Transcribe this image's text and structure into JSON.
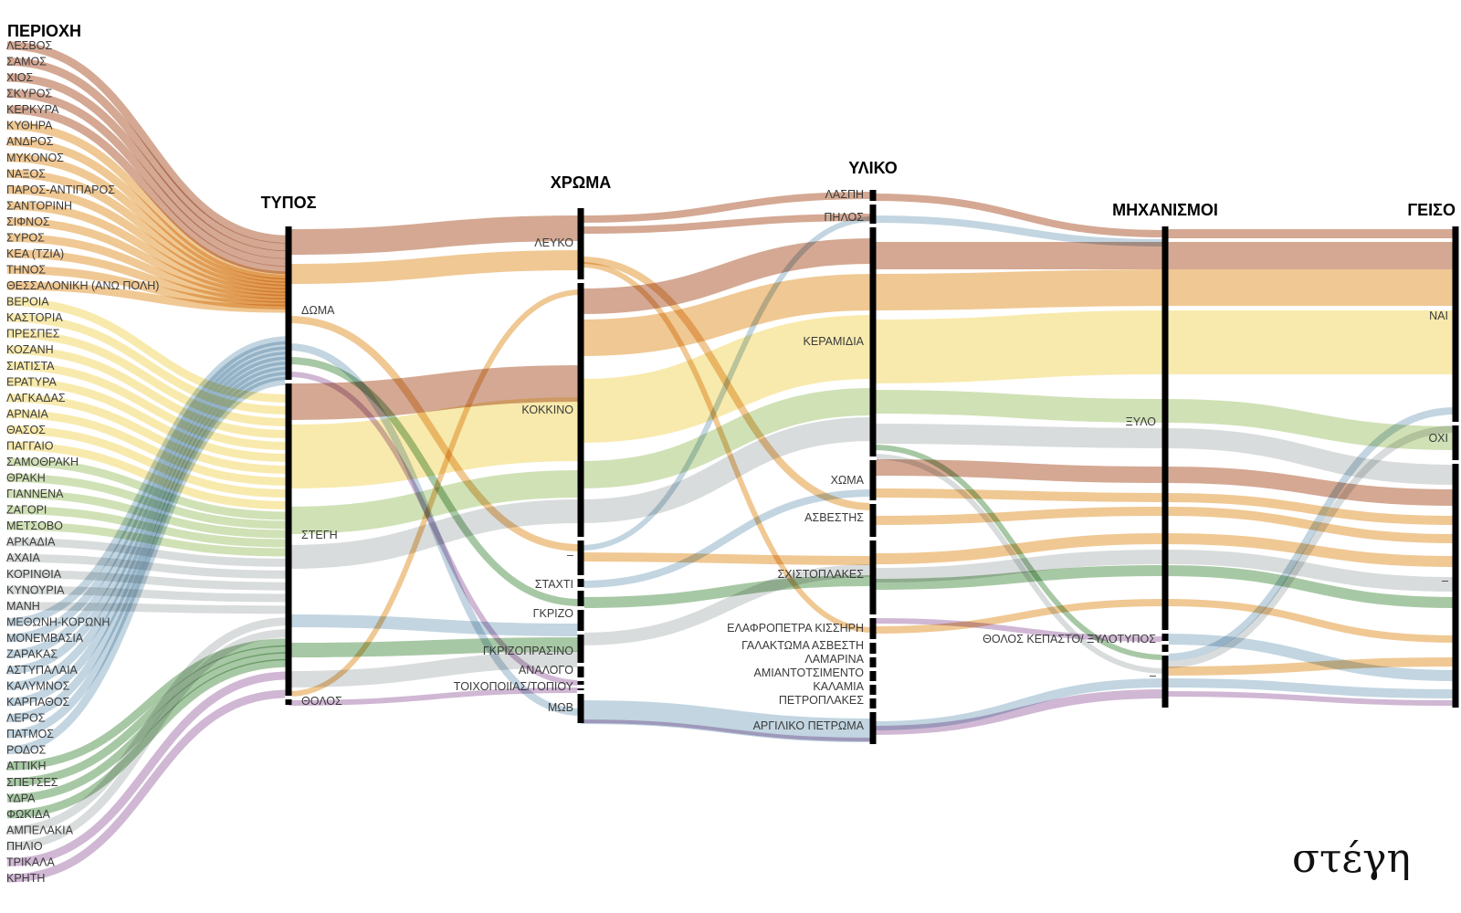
{
  "palette": {
    "brown": "#b0603a",
    "orange": "#e39a3a",
    "yellow": "#f3d96a",
    "green": "#a9c97a",
    "darkgreen": "#5f9a5a",
    "blue": "#8fb2c8",
    "grey": "#b9c0c0",
    "purple": "#a97bb0"
  },
  "axes": [
    {
      "title": "ΠΕΡΙΟΧΗ",
      "nodes": [
        {
          "label": "ΛΕΣΒΟΣ",
          "color": "brown"
        },
        {
          "label": "ΣΑΜΟΣ",
          "color": "brown"
        },
        {
          "label": "ΧΙΟΣ",
          "color": "brown"
        },
        {
          "label": "ΣΚΥΡΟΣ",
          "color": "brown"
        },
        {
          "label": "ΚΕΡΚΥΡΑ",
          "color": "brown"
        },
        {
          "label": "ΚΥΘΗΡΑ",
          "color": "orange"
        },
        {
          "label": "ΑΝΔΡΟΣ",
          "color": "orange"
        },
        {
          "label": "ΜΥΚΟΝΟΣ",
          "color": "orange"
        },
        {
          "label": "ΝΑΞΟΣ",
          "color": "orange"
        },
        {
          "label": "ΠΑΡΟΣ-ΑΝΤΙΠΑΡΟΣ",
          "color": "orange"
        },
        {
          "label": "ΣΑΝΤΟΡΙΝΗ",
          "color": "orange"
        },
        {
          "label": "ΣΙΦΝΟΣ",
          "color": "orange"
        },
        {
          "label": "ΣΥΡΟΣ",
          "color": "orange"
        },
        {
          "label": "ΚΕΑ (ΤΖΙΑ)",
          "color": "orange"
        },
        {
          "label": "ΤΗΝΟΣ",
          "color": "orange"
        },
        {
          "label": "ΘΕΣΣΑΛΟΝΙΚΗ (ΑΝΩ ΠΟΛΗ)",
          "color": "orange"
        },
        {
          "label": "ΒΕΡΟΙΑ",
          "color": "yellow"
        },
        {
          "label": "ΚΑΣΤΟΡΙΑ",
          "color": "yellow"
        },
        {
          "label": "ΠΡΕΣΠΕΣ",
          "color": "yellow"
        },
        {
          "label": "ΚΟΖΑΝΗ",
          "color": "yellow"
        },
        {
          "label": "ΣΙΑΤΙΣΤΑ",
          "color": "yellow"
        },
        {
          "label": "ΕΡΑΤΥΡΑ",
          "color": "yellow"
        },
        {
          "label": "ΛΑΓΚΑΔΑΣ",
          "color": "yellow"
        },
        {
          "label": "ΑΡΝΑΙΑ",
          "color": "yellow"
        },
        {
          "label": "ΘΑΣΟΣ",
          "color": "yellow"
        },
        {
          "label": "ΠΑΓΓΑΙΟ",
          "color": "yellow"
        },
        {
          "label": "ΣΑΜΟΘΡΑΚΗ",
          "color": "green"
        },
        {
          "label": "ΘΡΑΚΗ",
          "color": "green"
        },
        {
          "label": "ΓΙΑΝΝΕΝΑ",
          "color": "green"
        },
        {
          "label": "ΖΑΓΟΡΙ",
          "color": "green"
        },
        {
          "label": "ΜΕΤΣΟΒΟ",
          "color": "green"
        },
        {
          "label": "ΑΡΚΑΔΙΑ",
          "color": "grey"
        },
        {
          "label": "ΑΧΑΙΑ",
          "color": "grey"
        },
        {
          "label": "ΚΟΡΙΝΘΙΑ",
          "color": "grey"
        },
        {
          "label": "ΚΥΝΟΥΡΙΑ",
          "color": "grey"
        },
        {
          "label": "ΜΑΝΗ",
          "color": "grey"
        },
        {
          "label": "ΜΕΘΩΝΗ-ΚΟΡΩΝΗ",
          "color": "blue"
        },
        {
          "label": "ΜΟΝΕΜΒΑΣΙΑ",
          "color": "blue"
        },
        {
          "label": "ΖΑΡΑΚΑΣ",
          "color": "blue"
        },
        {
          "label": "ΑΣΤΥΠΑΛΑΙΑ",
          "color": "blue"
        },
        {
          "label": "ΚΑΛΥΜΝΟΣ",
          "color": "blue"
        },
        {
          "label": "ΚΑΡΠΑΘΟΣ",
          "color": "blue"
        },
        {
          "label": "ΛΕΡΟΣ",
          "color": "blue"
        },
        {
          "label": "ΠΑΤΜΟΣ",
          "color": "blue"
        },
        {
          "label": "ΡΟΔΟΣ",
          "color": "blue"
        },
        {
          "label": "ΑΤΤΙΚΗ",
          "color": "darkgreen"
        },
        {
          "label": "ΣΠΕΤΣΕΣ",
          "color": "darkgreen"
        },
        {
          "label": "ΥΔΡΑ",
          "color": "darkgreen"
        },
        {
          "label": "ΦΩΚΙΔΑ",
          "color": "darkgreen"
        },
        {
          "label": "ΑΜΠΕΛΑΚΙΑ",
          "color": "grey"
        },
        {
          "label": "ΠΗΛΙΟ",
          "color": "grey"
        },
        {
          "label": "ΤΡΙΚΑΛΑ",
          "color": "purple"
        },
        {
          "label": "ΚΡΗΤΗ",
          "color": "purple"
        }
      ]
    },
    {
      "title": "ΤΥΠΟΣ",
      "nodes": [
        {
          "label": "ΔΩΜΑ",
          "value": 4
        },
        {
          "label": "ΣΤΕΓΗ",
          "value": 18
        },
        {
          "label": "ΘΟΛΟΣ",
          "value": 0.2
        }
      ]
    },
    {
      "title": "ΧΡΩΜΑ",
      "nodes": [
        {
          "label": "ΛΕΥΚΟ",
          "value": 4
        },
        {
          "label": "ΚΟΚΚΙΝΟ",
          "value": 15
        },
        {
          "label": "–",
          "value": 2
        },
        {
          "label": "ΣΤΑΧΤΙ",
          "value": 0.6
        },
        {
          "label": "ΓΚΡΙΖΟ",
          "value": 1.5
        },
        {
          "label": "ΓΚΡΙΖΟΠΡΑΣΙΝΟ",
          "value": 1.6
        },
        {
          "label": "ΑΝΑΛΟΓΟ",
          "value": 0.4
        },
        {
          "label": "ΤΟΙΧΟΠΟΙΙΑΣ/ΤΟΠΙΟΥ",
          "value": 0.4
        },
        {
          "label": "ΜΩΒ",
          "value": 1.5
        }
      ]
    },
    {
      "title": "ΥΛΙΚΟ",
      "nodes": [
        {
          "label": "ΛΑΣΠΗ",
          "value": 0.6
        },
        {
          "label": "ΠΗΛΟΣ",
          "value": 0.6
        },
        {
          "label": "ΚΕΡΑΜΙΔΙΑ",
          "value": 12
        },
        {
          "label": "ΧΩΜΑ",
          "value": 2.2
        },
        {
          "label": "ΑΣΒΕΣΤΗΣ",
          "value": 1
        },
        {
          "label": "ΣΧΙΣΤΟΠΛΑΚΕΣ",
          "value": 2.6
        },
        {
          "label": "ΕΛΑΦΡΟΠΕΤΡΑ ΚΙΣΣΗΡΗ",
          "value": 0.5
        },
        {
          "label": "ΓΑΛΑΚΤΩΜΑ ΑΣΒΕΣΤΗ",
          "value": 0.3
        },
        {
          "label": "ΛΑΜΑΡΙΝΑ",
          "value": 0.3
        },
        {
          "label": "ΑΜΙΑΝΤΟΤΣΙΜΕΝΤΟ",
          "value": 0.3
        },
        {
          "label": "ΚΑΛΑΜΙΑ",
          "value": 0.3
        },
        {
          "label": "ΠΕΤΡΟΠΛΑΚΕΣ",
          "value": 0.3
        },
        {
          "label": "ΑΡΓΙΛΙΚΟ ΠΕΤΡΩΜΑ",
          "value": 1.8
        }
      ]
    },
    {
      "title": "ΜΗΧΑΝΙΣΜΟΙ",
      "nodes": [
        {
          "label": "ΞΥΛΟ",
          "value": 20
        },
        {
          "label": "ΘΟΛΟΣ ΚΕΠΑΣΤΟ/ ΞΥΛΟΤΥΠΟΣ",
          "value": 0.6
        },
        {
          "label": "–",
          "value": 2
        }
      ]
    },
    {
      "title": "ΓΕΙΣΟ",
      "nodes": [
        {
          "label": "ΝΑΙ",
          "value": 8
        },
        {
          "label": "ΟΧΙ",
          "value": 1.3
        },
        {
          "label": "–",
          "value": 9
        }
      ]
    }
  ],
  "signature": "στέγη"
}
